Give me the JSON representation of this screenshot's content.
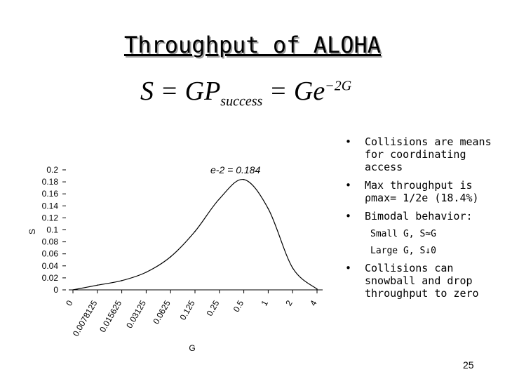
{
  "slide": {
    "title": "Throughput of ALOHA",
    "formula": {
      "lhs": "S = GP",
      "sub": "success",
      "mid": " = Ge",
      "sup": "−2G"
    },
    "page_number": "25"
  },
  "bullets": [
    {
      "marker": "•",
      "text": "Collisions are means for coordinating access"
    },
    {
      "marker": "•",
      "text": "Max throughput is ρmax= 1/2e (18.4%)"
    },
    {
      "marker": "•",
      "text": "Bimodal behavior:",
      "sub": [
        "Small G, S≈G",
        "Large G, S↓0"
      ]
    },
    {
      "marker": "•",
      "text": "Collisions can snowball and drop throughput to zero"
    }
  ],
  "chart_data": {
    "type": "line",
    "categories": [
      "0",
      "0.0078125",
      "0.015625",
      "0.03125",
      "0.0625",
      "0.125",
      "0.25",
      "0.5",
      "1",
      "2",
      "4"
    ],
    "series": [
      {
        "values": [
          0,
          0.0078,
          0.0154,
          0.0294,
          0.0551,
          0.0974,
          0.1516,
          0.1839,
          0.1353,
          0.0366,
          0.0013
        ]
      }
    ],
    "xlabel": "G",
    "ylabel": "S",
    "ylim": [
      0,
      0.2
    ],
    "yticks": [
      "0",
      "0.02",
      "0.04",
      "0.06",
      "0.08",
      "0.1",
      "0.12",
      "0.14",
      "0.16",
      "0.18",
      "0.2"
    ],
    "annotation": "e-2 = 0.184",
    "grid": false
  }
}
